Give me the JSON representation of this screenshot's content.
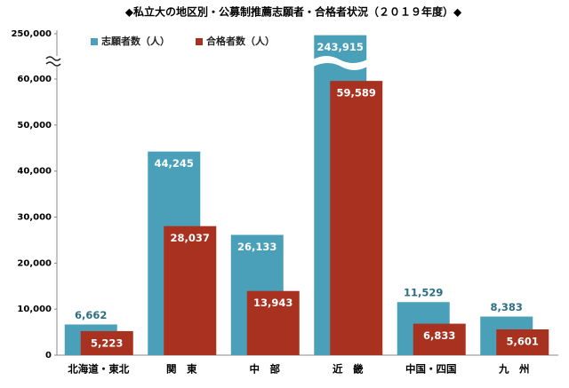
{
  "chart_data": {
    "type": "bar",
    "title": "◆私立大の地区別・公募制推薦志願者・合格者状況（２０１９年度）◆",
    "categories": [
      "北海道・東北",
      "関　東",
      "中　部",
      "近　畿",
      "中国・四国",
      "九　州"
    ],
    "series": [
      {
        "name": "志願者数（人）",
        "color": "#4aa0b8",
        "values": [
          6662,
          44245,
          26133,
          243915,
          11529,
          8383
        ],
        "value_labels": [
          "6,662",
          "44,245",
          "26,133",
          "243,915",
          "11,529",
          "8,383"
        ]
      },
      {
        "name": "合格者数（人）",
        "color": "#a8321f",
        "values": [
          5223,
          28037,
          13943,
          59589,
          6833,
          5601
        ],
        "value_labels": [
          "5,223",
          "28,037",
          "13,943",
          "59,589",
          "6,833",
          "5,601"
        ]
      }
    ],
    "ylim": [
      0,
      250000
    ],
    "y_break": 60000,
    "yticks": [
      {
        "value": 0,
        "label": "0"
      },
      {
        "value": 10000,
        "label": "10,000"
      },
      {
        "value": 20000,
        "label": "20,000"
      },
      {
        "value": 30000,
        "label": "30,000"
      },
      {
        "value": 40000,
        "label": "40,000"
      },
      {
        "value": 50000,
        "label": "50,000"
      },
      {
        "value": 60000,
        "label": "60,000"
      },
      {
        "value": 250000,
        "label": "250,000"
      }
    ],
    "legend": "top-left"
  }
}
